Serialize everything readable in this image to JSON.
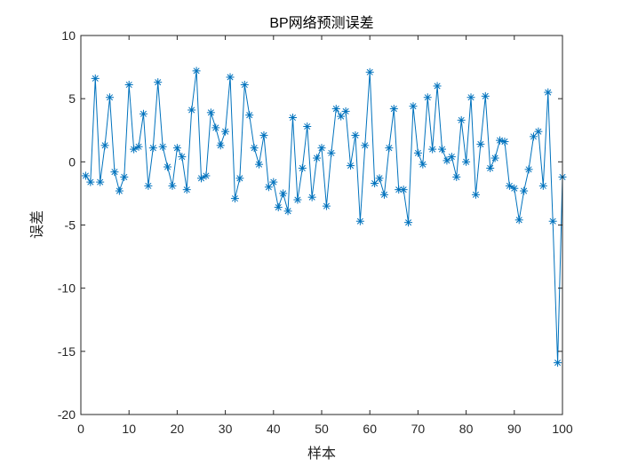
{
  "chart_data": {
    "type": "line",
    "title": "BP网络预测误差",
    "xlabel": "样本",
    "ylabel": "误差",
    "xlim": [
      0,
      100
    ],
    "ylim": [
      -20,
      10
    ],
    "xticks": [
      0,
      10,
      20,
      30,
      40,
      50,
      60,
      70,
      80,
      90,
      100
    ],
    "yticks": [
      10,
      5,
      0,
      -5,
      -10,
      -15,
      -20
    ],
    "grid": false,
    "legend": null,
    "marker": "*",
    "color": "#0072BD",
    "series": [
      {
        "name": "误差",
        "x": [
          1,
          2,
          3,
          4,
          5,
          6,
          7,
          8,
          9,
          10,
          11,
          12,
          13,
          14,
          15,
          16,
          17,
          18,
          19,
          20,
          21,
          22,
          23,
          24,
          25,
          26,
          27,
          28,
          29,
          30,
          31,
          32,
          33,
          34,
          35,
          36,
          37,
          38,
          39,
          40,
          41,
          42,
          43,
          44,
          45,
          46,
          47,
          48,
          49,
          50,
          51,
          52,
          53,
          54,
          55,
          56,
          57,
          58,
          59,
          60,
          61,
          62,
          63,
          64,
          65,
          66,
          67,
          68,
          69,
          70,
          71,
          72,
          73,
          74,
          75,
          76,
          77,
          78,
          79,
          80,
          81,
          82,
          83,
          84,
          85,
          86,
          87,
          88,
          89,
          90,
          91,
          92,
          93,
          94,
          95,
          96,
          97,
          98,
          99,
          100
        ],
        "values": [
          -1.1,
          -1.6,
          6.6,
          -1.6,
          1.3,
          5.1,
          -0.8,
          -2.3,
          -1.2,
          6.1,
          1.0,
          1.2,
          3.8,
          -1.9,
          1.1,
          6.3,
          1.2,
          -0.4,
          -1.9,
          1.1,
          0.4,
          -2.2,
          4.1,
          7.2,
          -1.3,
          -1.1,
          3.9,
          2.7,
          1.3,
          2.4,
          6.7,
          -2.9,
          -1.3,
          6.1,
          3.7,
          1.1,
          -0.2,
          2.1,
          -2.0,
          -1.6,
          -3.6,
          -2.5,
          -3.9,
          3.5,
          -3.0,
          -0.5,
          2.8,
          -2.8,
          0.3,
          1.1,
          -3.5,
          0.7,
          4.2,
          3.6,
          4.0,
          -0.3,
          2.1,
          -4.7,
          1.3,
          7.1,
          -1.7,
          -1.3,
          -2.6,
          1.1,
          4.2,
          -2.2,
          -2.2,
          -4.8,
          4.4,
          0.7,
          -0.2,
          5.1,
          1.0,
          6.0,
          1.0,
          0.1,
          0.4,
          -1.2,
          3.3,
          0.0,
          5.1,
          -2.6,
          1.4,
          5.2,
          -0.5,
          0.3,
          1.7,
          1.6,
          -1.9,
          -2.1,
          -4.6,
          -2.3,
          -0.6,
          2.0,
          2.4,
          -1.9,
          5.5,
          -4.7,
          -15.9,
          -1.2
        ]
      }
    ]
  }
}
